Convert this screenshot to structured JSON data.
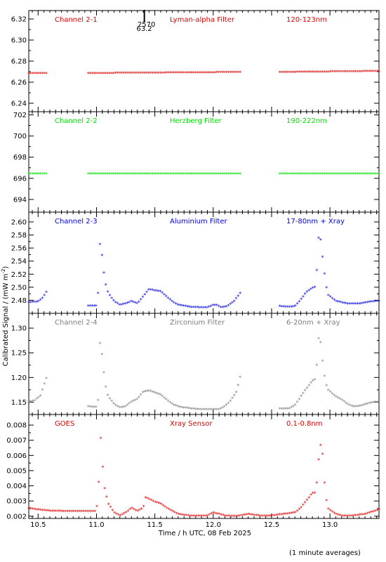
{
  "xlabel": "Time / h UTC, 08 Feb 2025",
  "ylabel": "Calibrated Signal / (mW m",
  "ylabel_sup": "-2",
  "ylabel_close": ")",
  "footnote": "(1 minute averages)",
  "marker": {
    "label_top": "2570",
    "label_bottom": "63.2",
    "x": 11.41
  },
  "chart_data": [
    {
      "type": "scatter",
      "labels": {
        "channel": "Channel 2-1",
        "filter": "Lyman-alpha Filter",
        "band": "120-123nm"
      },
      "color": "#e00000",
      "x_range": [
        10.42,
        13.42
      ],
      "ylim": [
        6.232,
        6.328
      ],
      "yticks": [
        6.24,
        6.26,
        6.28,
        6.3,
        6.32
      ],
      "ytick_labels": [
        "6.24",
        "6.26",
        "6.28",
        "6.30",
        "6.32"
      ],
      "segments": [
        {
          "x0": 10.42,
          "x1": 10.58,
          "points": [
            [
              10.42,
              6.268
            ],
            [
              10.58,
              6.268
            ]
          ]
        },
        {
          "x0": 10.93,
          "x1": 12.23,
          "points": [
            [
              10.93,
              6.268
            ],
            [
              12.23,
              6.269
            ]
          ]
        },
        {
          "x0": 12.57,
          "x1": 13.42,
          "points": [
            [
              12.57,
              6.269
            ],
            [
              13.42,
              6.27
            ]
          ]
        }
      ]
    },
    {
      "type": "scatter",
      "labels": {
        "channel": "Channel 2-2",
        "filter": "Herzberg Filter",
        "band": "190-222nm"
      },
      "color": "#00e000",
      "x_range": [
        10.42,
        13.42
      ],
      "ylim": [
        692.8,
        702.3
      ],
      "yticks": [
        694,
        696,
        698,
        700,
        702
      ],
      "ytick_labels": [
        "694",
        "696",
        "698",
        "700",
        "702"
      ],
      "segments": [
        {
          "x0": 10.42,
          "x1": 10.58,
          "points": [
            [
              10.42,
              696.4
            ],
            [
              10.58,
              696.4
            ]
          ]
        },
        {
          "x0": 10.93,
          "x1": 12.23,
          "points": [
            [
              10.93,
              696.4
            ],
            [
              12.23,
              696.4
            ]
          ]
        },
        {
          "x0": 12.57,
          "x1": 13.42,
          "points": [
            [
              12.57,
              696.4
            ],
            [
              13.42,
              696.4
            ]
          ]
        }
      ]
    },
    {
      "type": "scatter",
      "labels": {
        "channel": "Channel 2-3",
        "filter": "Aluminium Filter",
        "band": "17-80nm + Xray"
      },
      "color": "#0000e0",
      "x_range": [
        10.42,
        13.42
      ],
      "ylim": [
        2.46,
        2.615
      ],
      "yticks": [
        2.48,
        2.5,
        2.52,
        2.54,
        2.56,
        2.58,
        2.6
      ],
      "ytick_labels": [
        "2.48",
        "2.50",
        "2.52",
        "2.54",
        "2.56",
        "2.58",
        "2.60"
      ],
      "segments": [
        {
          "x0": 10.42,
          "x1": 10.58,
          "points": [
            [
              10.42,
              2.476
            ],
            [
              10.5,
              2.477
            ],
            [
              10.54,
              2.483
            ],
            [
              10.58,
              2.495
            ]
          ]
        },
        {
          "x0": 10.93,
          "x1": 12.23,
          "points": [
            [
              10.93,
              2.471
            ],
            [
              11.0,
              2.471
            ],
            [
              11.02,
              2.5
            ],
            [
              11.03,
              2.565
            ],
            [
              11.04,
              2.56
            ],
            [
              11.06,
              2.525
            ],
            [
              11.08,
              2.503
            ],
            [
              11.1,
              2.49
            ],
            [
              11.15,
              2.478
            ],
            [
              11.2,
              2.472
            ],
            [
              11.25,
              2.474
            ],
            [
              11.3,
              2.478
            ],
            [
              11.35,
              2.474
            ],
            [
              11.4,
              2.485
            ],
            [
              11.45,
              2.496
            ],
            [
              11.5,
              2.494
            ],
            [
              11.55,
              2.493
            ],
            [
              11.6,
              2.485
            ],
            [
              11.65,
              2.477
            ],
            [
              11.7,
              2.472
            ],
            [
              11.8,
              2.469
            ],
            [
              11.9,
              2.468
            ],
            [
              11.95,
              2.468
            ],
            [
              12.0,
              2.472
            ],
            [
              12.03,
              2.472
            ],
            [
              12.07,
              2.468
            ],
            [
              12.12,
              2.47
            ],
            [
              12.18,
              2.478
            ],
            [
              12.23,
              2.49
            ]
          ]
        },
        {
          "x0": 12.57,
          "x1": 13.42,
          "points": [
            [
              12.57,
              2.47
            ],
            [
              12.65,
              2.469
            ],
            [
              12.7,
              2.47
            ],
            [
              12.75,
              2.48
            ],
            [
              12.8,
              2.492
            ],
            [
              12.85,
              2.498
            ],
            [
              12.88,
              2.5
            ],
            [
              12.9,
              2.575
            ],
            [
              12.92,
              2.572
            ],
            [
              12.94,
              2.54
            ],
            [
              12.96,
              2.51
            ],
            [
              12.98,
              2.488
            ],
            [
              13.05,
              2.478
            ],
            [
              13.1,
              2.476
            ],
            [
              13.15,
              2.474
            ],
            [
              13.25,
              2.474
            ],
            [
              13.35,
              2.477
            ],
            [
              13.42,
              2.478
            ]
          ]
        }
      ]
    },
    {
      "type": "scatter",
      "labels": {
        "channel": "Channel 2-4",
        "filter": "Zirconium Filter",
        "band": "6-20nm + Xray"
      },
      "color": "#808080",
      "x_range": [
        10.42,
        13.42
      ],
      "ylim": [
        1.125,
        1.33
      ],
      "yticks": [
        1.15,
        1.2,
        1.25,
        1.3
      ],
      "ytick_labels": [
        "1.15",
        "1.20",
        "1.25",
        "1.30"
      ],
      "segments": [
        {
          "x0": 10.42,
          "x1": 10.58,
          "points": [
            [
              10.42,
              1.15
            ],
            [
              10.47,
              1.152
            ],
            [
              10.52,
              1.162
            ],
            [
              10.58,
              1.205
            ]
          ]
        },
        {
          "x0": 10.93,
          "x1": 12.23,
          "points": [
            [
              10.93,
              1.14
            ],
            [
              11.0,
              1.139
            ],
            [
              11.02,
              1.16
            ],
            [
              11.03,
              1.268
            ],
            [
              11.04,
              1.262
            ],
            [
              11.06,
              1.215
            ],
            [
              11.08,
              1.18
            ],
            [
              11.1,
              1.16
            ],
            [
              11.15,
              1.145
            ],
            [
              11.2,
              1.138
            ],
            [
              11.25,
              1.14
            ],
            [
              11.3,
              1.15
            ],
            [
              11.35,
              1.155
            ],
            [
              11.4,
              1.17
            ],
            [
              11.45,
              1.172
            ],
            [
              11.5,
              1.168
            ],
            [
              11.55,
              1.164
            ],
            [
              11.6,
              1.154
            ],
            [
              11.65,
              1.145
            ],
            [
              11.7,
              1.14
            ],
            [
              11.8,
              1.136
            ],
            [
              11.9,
              1.134
            ],
            [
              12.0,
              1.134
            ],
            [
              12.05,
              1.134
            ],
            [
              12.1,
              1.14
            ],
            [
              12.15,
              1.152
            ],
            [
              12.2,
              1.17
            ],
            [
              12.23,
              1.2
            ]
          ]
        },
        {
          "x0": 12.57,
          "x1": 13.42,
          "points": [
            [
              12.57,
              1.136
            ],
            [
              12.65,
              1.136
            ],
            [
              12.7,
              1.142
            ],
            [
              12.75,
              1.16
            ],
            [
              12.8,
              1.177
            ],
            [
              12.85,
              1.192
            ],
            [
              12.88,
              1.196
            ],
            [
              12.9,
              1.28
            ],
            [
              12.92,
              1.27
            ],
            [
              12.94,
              1.225
            ],
            [
              12.96,
              1.19
            ],
            [
              12.98,
              1.175
            ],
            [
              13.05,
              1.16
            ],
            [
              13.1,
              1.154
            ],
            [
              13.15,
              1.145
            ],
            [
              13.2,
              1.14
            ],
            [
              13.25,
              1.141
            ],
            [
              13.35,
              1.148
            ],
            [
              13.42,
              1.15
            ]
          ]
        }
      ]
    },
    {
      "type": "scatter",
      "labels": {
        "channel": "GOES",
        "filter": "Xray Sensor",
        "band": "0.1-0.8nm"
      },
      "color": "#e00000",
      "x_range": [
        10.42,
        13.42
      ],
      "ylim": [
        0.00185,
        0.0087
      ],
      "yticks": [
        0.002,
        0.003,
        0.004,
        0.005,
        0.006,
        0.007,
        0.008
      ],
      "ytick_labels": [
        "0.002",
        "0.003",
        "0.004",
        "0.005",
        "0.006",
        "0.007",
        "0.008"
      ],
      "xticks": [
        10.5,
        11.0,
        11.5,
        12.0,
        12.5,
        13.0
      ],
      "xtick_labels": [
        "10.5",
        "11.0",
        "11.5",
        "12.0",
        "12.5",
        "13.0"
      ],
      "segments": [
        {
          "x0": 10.42,
          "x1": 13.42,
          "points": [
            [
              10.42,
              0.0025
            ],
            [
              10.5,
              0.0024
            ],
            [
              10.6,
              0.00232
            ],
            [
              10.7,
              0.0023
            ],
            [
              10.8,
              0.0023
            ],
            [
              10.9,
              0.0023
            ],
            [
              11.0,
              0.0023
            ],
            [
              11.02,
              0.0042
            ],
            [
              11.03,
              0.0079
            ],
            [
              11.05,
              0.0055
            ],
            [
              11.07,
              0.0038
            ],
            [
              11.1,
              0.0028
            ],
            [
              11.15,
              0.0022
            ],
            [
              11.2,
              0.002
            ],
            [
              11.25,
              0.0022
            ],
            [
              11.3,
              0.0025
            ],
            [
              11.35,
              0.0023
            ],
            [
              11.4,
              0.0025
            ],
            [
              11.42,
              0.0032
            ],
            [
              11.45,
              0.0031
            ],
            [
              11.5,
              0.0029
            ],
            [
              11.55,
              0.0028
            ],
            [
              11.6,
              0.0025
            ],
            [
              11.7,
              0.0021
            ],
            [
              11.8,
              0.002
            ],
            [
              11.9,
              0.002
            ],
            [
              11.95,
              0.002
            ],
            [
              12.0,
              0.0022
            ],
            [
              12.05,
              0.0021
            ],
            [
              12.1,
              0.002
            ],
            [
              12.2,
              0.00195
            ],
            [
              12.3,
              0.0021
            ],
            [
              12.4,
              0.002
            ],
            [
              12.5,
              0.002
            ],
            [
              12.6,
              0.0021
            ],
            [
              12.7,
              0.0022
            ],
            [
              12.75,
              0.0025
            ],
            [
              12.8,
              0.003
            ],
            [
              12.85,
              0.0035
            ],
            [
              12.88,
              0.0035
            ],
            [
              12.9,
              0.0055
            ],
            [
              12.93,
              0.0072
            ],
            [
              12.94,
              0.0055
            ],
            [
              12.96,
              0.0035
            ],
            [
              12.98,
              0.0025
            ],
            [
              13.05,
              0.0021
            ],
            [
              13.1,
              0.002
            ],
            [
              13.2,
              0.002
            ],
            [
              13.3,
              0.0021
            ],
            [
              13.42,
              0.0024
            ]
          ]
        }
      ]
    }
  ]
}
